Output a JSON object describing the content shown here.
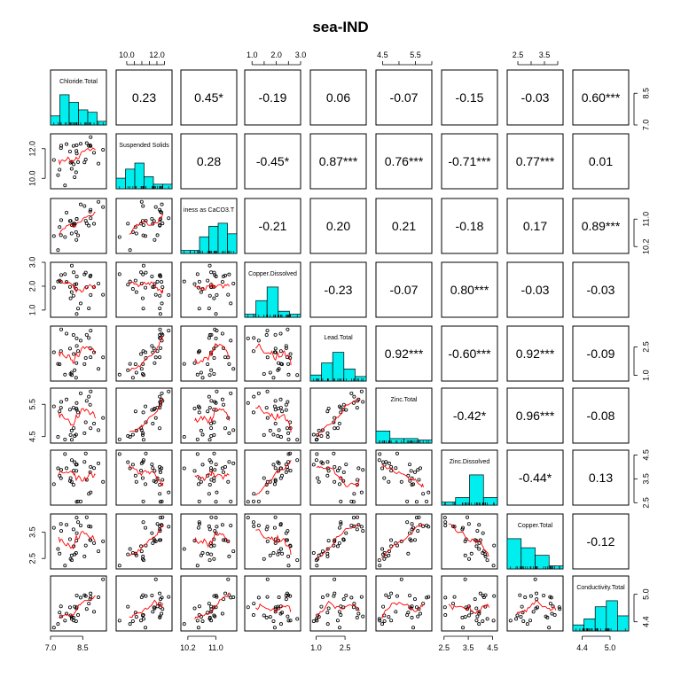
{
  "chart_data": {
    "type": "scatter-matrix",
    "title": "sea-IND",
    "variables": [
      {
        "name": "Chloride.Total",
        "range": [
          7.0,
          9.6
        ],
        "ticks": [
          7.0,
          8.5
        ],
        "axis_side": "right"
      },
      {
        "name": "Suspended Solids",
        "range": [
          9.3,
          13.0
        ],
        "ticks": [
          10.0,
          12.0
        ],
        "axis_side": "top",
        "minor_ticks": [
          10.0,
          10.5,
          11.0,
          11.5,
          12.0,
          12.5
        ]
      },
      {
        "name": "iness as CaCO3.T",
        "range": [
          10.0,
          11.6
        ],
        "ticks": [
          10.2,
          11.0
        ],
        "axis_side": "right"
      },
      {
        "name": "Copper.Dissolved",
        "range": [
          0.7,
          3.0
        ],
        "ticks": [
          1.0,
          2.0,
          3.0
        ],
        "axis_side": "top",
        "minor_ticks": [
          1.0,
          1.5,
          2.0,
          2.5,
          3.0
        ]
      },
      {
        "name": "Lead.Total",
        "range": [
          0.7,
          3.6
        ],
        "ticks": [
          1.0,
          2.5
        ],
        "axis_side": "right"
      },
      {
        "name": "Zinc.Total",
        "range": [
          4.3,
          6.0
        ],
        "ticks": [
          4.5,
          5.5
        ],
        "axis_side": "top",
        "minor_ticks": [
          4.5,
          5.0,
          5.5,
          6.0
        ]
      },
      {
        "name": "Zinc.Dissolved",
        "range": [
          2.4,
          4.7
        ],
        "ticks": [
          2.5,
          3.5,
          4.5
        ],
        "axis_side": "right"
      },
      {
        "name": "Copper.Total",
        "range": [
          2.1,
          4.2
        ],
        "ticks": [
          2.5,
          3.5
        ],
        "axis_side": "top",
        "minor_ticks": [
          2.5,
          3.0,
          3.5,
          4.0
        ]
      },
      {
        "name": "Conductivity.Total",
        "range": [
          4.2,
          5.4
        ],
        "ticks": [
          4.4,
          5.0
        ],
        "axis_side": "right"
      }
    ],
    "bottom_axis": [
      {
        "col": 0,
        "ticks": [
          7.0,
          8.5
        ]
      },
      {
        "col": 2,
        "ticks": [
          10.2,
          11.0
        ]
      },
      {
        "col": 4,
        "ticks": [
          1.0,
          2.5
        ]
      },
      {
        "col": 6,
        "ticks": [
          2.5,
          3.5,
          4.5
        ]
      },
      {
        "col": 8,
        "ticks": [
          4.4,
          5.0
        ]
      }
    ],
    "left_axis": [
      {
        "row": 1,
        "ticks": [
          10.0,
          12.0
        ]
      },
      {
        "row": 3,
        "ticks": [
          1.0,
          2.0,
          3.0
        ]
      },
      {
        "row": 5,
        "ticks": [
          4.5,
          5.5
        ]
      },
      {
        "row": 7,
        "ticks": [
          2.5,
          3.5
        ]
      }
    ],
    "correlations": [
      [
        "",
        "0.23",
        "0.45*",
        "-0.19",
        "0.06",
        "-0.07",
        "-0.15",
        "-0.03",
        "0.60***"
      ],
      [
        "",
        "",
        "0.28",
        "-0.45*",
        "0.87***",
        "0.76***",
        "-0.71***",
        "0.77***",
        "0.01"
      ],
      [
        "",
        "",
        "",
        "-0.21",
        "0.20",
        "0.21",
        "-0.18",
        "0.17",
        "0.89***"
      ],
      [
        "",
        "",
        "",
        "",
        "-0.23",
        "-0.07",
        "0.80***",
        "-0.03",
        "-0.03"
      ],
      [
        "",
        "",
        "",
        "",
        "",
        "0.92***",
        "-0.60***",
        "0.92***",
        "-0.09"
      ],
      [
        "",
        "",
        "",
        "",
        "",
        "",
        "-0.42*",
        "0.96***",
        "-0.08"
      ],
      [
        "",
        "",
        "",
        "",
        "",
        "",
        "",
        "-0.44*",
        "0.13"
      ],
      [
        "",
        "",
        "",
        "",
        "",
        "",
        "",
        "",
        "-0.12"
      ],
      [
        "",
        "",
        "",
        "",
        "",
        "",
        "",
        "",
        ""
      ]
    ],
    "histograms": [
      [
        0.3,
        1.0,
        0.75,
        0.5,
        0.42,
        0.12
      ],
      [
        0.35,
        0.65,
        0.85,
        0.4,
        0.15,
        0.15
      ],
      [
        0.1,
        0.1,
        0.55,
        0.9,
        1.0,
        0.65
      ],
      [
        0.1,
        0.55,
        1.0,
        0.2,
        0.1
      ],
      [
        0.2,
        0.6,
        0.95,
        0.4,
        0.15
      ],
      [
        0.4,
        0.15,
        0.15,
        0.1
      ],
      [
        0.1,
        0.25,
        1.0,
        0.25
      ],
      [
        1.0,
        0.7,
        0.45,
        0.1
      ],
      [
        0.2,
        0.4,
        0.8,
        1.0,
        0.5
      ]
    ],
    "colors": {
      "histogram": "#00eeee",
      "smooth": "#ff0000",
      "points": "#000000",
      "frame": "#000000"
    }
  }
}
